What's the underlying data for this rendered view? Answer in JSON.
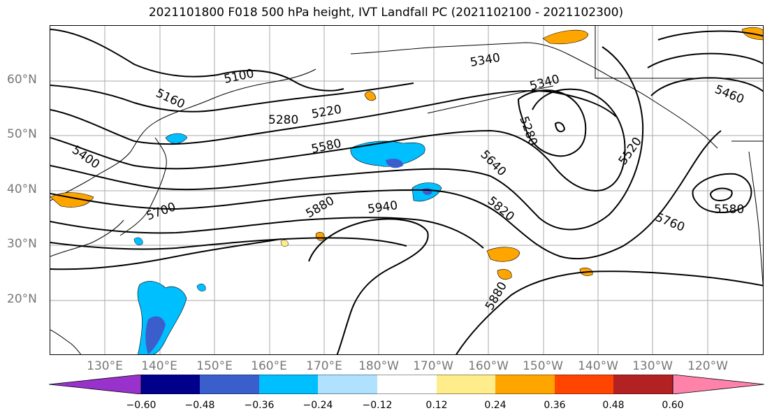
{
  "title": "2021101800 F018 500 hPa height, IVT Landfall PC (2021102100 - 2021102300)",
  "lat_labels": [
    "60°N",
    "50°N",
    "40°N",
    "30°N",
    "20°N"
  ],
  "lon_labels": [
    "130°E",
    "140°E",
    "150°E",
    "160°E",
    "170°E",
    "180°W",
    "170°W",
    "160°W",
    "150°W",
    "140°W",
    "130°W",
    "120°W"
  ],
  "contour_labels": [
    "5100",
    "5160",
    "5220",
    "5280",
    "5340",
    "5340",
    "5280",
    "5400",
    "5460",
    "5520",
    "5580",
    "5580",
    "5640",
    "5700",
    "5760",
    "5820",
    "5880",
    "5880",
    "5940"
  ],
  "colorbar": {
    "ticks": [
      "−0.60",
      "−0.48",
      "−0.36",
      "−0.24",
      "−0.12",
      "0.12",
      "0.24",
      "0.36",
      "0.48",
      "0.60"
    ],
    "colors": [
      "#9932cc",
      "#00008b",
      "#3a5fcd",
      "#00bfff",
      "#b0e2ff",
      "#ffffff",
      "#ffec8b",
      "#ffa500",
      "#ff4500",
      "#b22222",
      "#ff82ab"
    ]
  }
}
